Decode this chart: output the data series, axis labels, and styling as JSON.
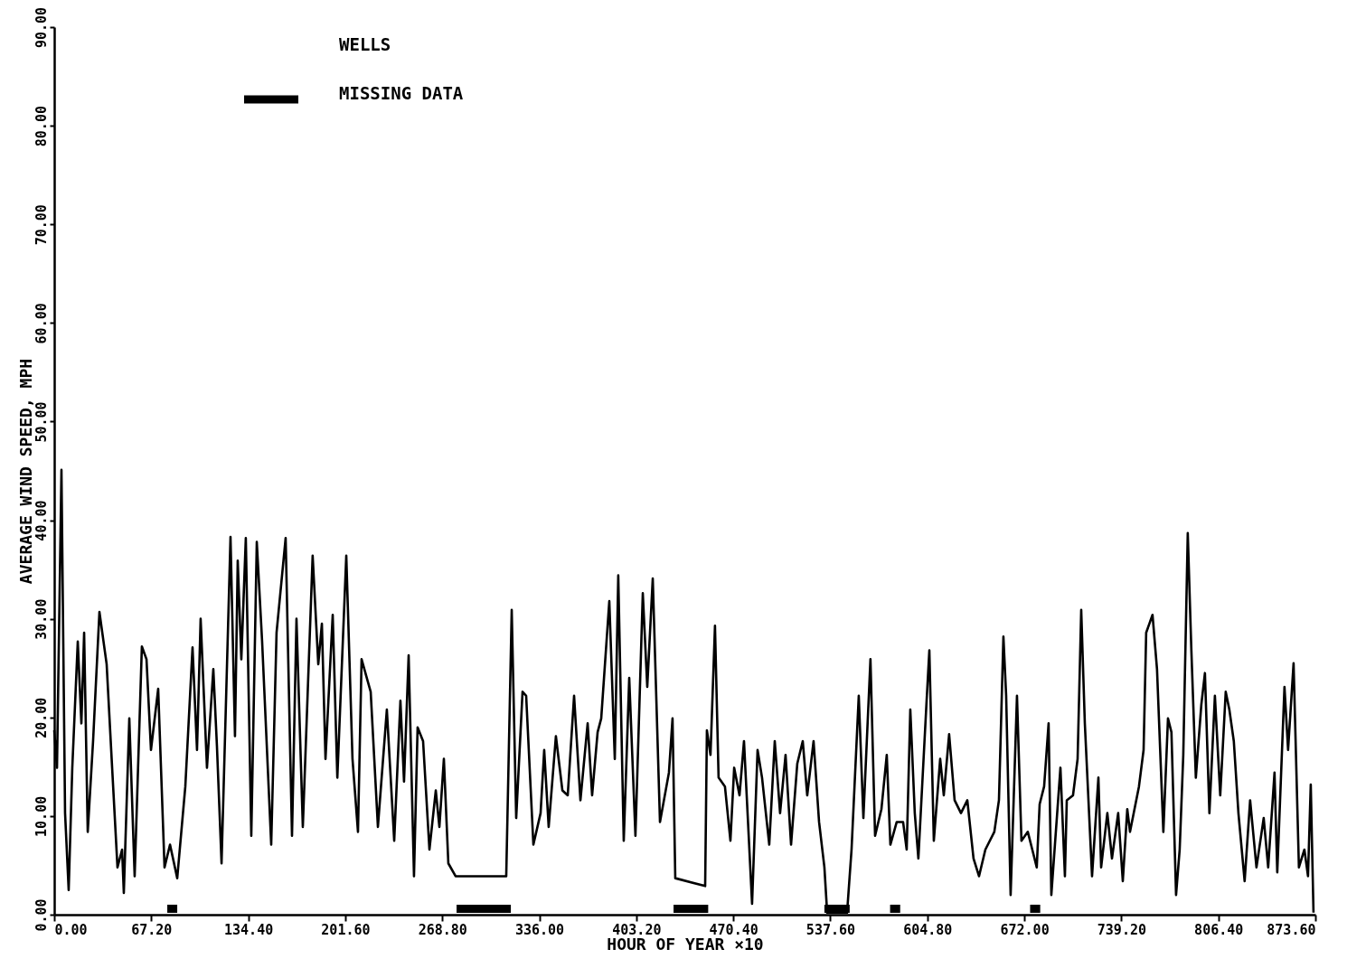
{
  "chart_data": {
    "type": "line",
    "title": "WELLS",
    "xlabel": "HOUR OF YEAR ×10",
    "ylabel": "AVERAGE WIND SPEED, MPH",
    "xlim": [
      0,
      873.6
    ],
    "ylim": [
      0,
      90
    ],
    "xticks": [
      {
        "value": 0,
        "label": "0.00"
      },
      {
        "value": 67.2,
        "label": "67.20"
      },
      {
        "value": 134.4,
        "label": "134.40"
      },
      {
        "value": 201.6,
        "label": "201.60"
      },
      {
        "value": 268.8,
        "label": "268.80"
      },
      {
        "value": 336,
        "label": "336.00"
      },
      {
        "value": 403.2,
        "label": "403.20"
      },
      {
        "value": 470.4,
        "label": "470.40"
      },
      {
        "value": 537.6,
        "label": "537.60"
      },
      {
        "value": 604.8,
        "label": "604.80"
      },
      {
        "value": 672,
        "label": "672.00"
      },
      {
        "value": 739.2,
        "label": "739.20"
      },
      {
        "value": 806.4,
        "label": "806.40"
      },
      {
        "value": 873.6,
        "label": "873.60"
      }
    ],
    "yticks": [
      {
        "value": 0,
        "label": "0.00"
      },
      {
        "value": 10,
        "label": "10.00"
      },
      {
        "value": 20,
        "label": "20.00"
      },
      {
        "value": 30,
        "label": "30.00"
      },
      {
        "value": 40,
        "label": "40.00"
      },
      {
        "value": 50,
        "label": "50.00"
      },
      {
        "value": 60,
        "label": "60.00"
      },
      {
        "value": 70,
        "label": "70.00"
      },
      {
        "value": 80,
        "label": "80.00"
      },
      {
        "value": 90,
        "label": "90.00"
      }
    ],
    "grid": false,
    "legend": "top left",
    "series": [
      {
        "color": "#000000",
        "x": [
          0,
          1.9,
          5.0,
          7.5,
          10.0,
          12.5,
          16.3,
          18.8,
          20.7,
          23.2,
          26.9,
          31.3,
          36.3,
          40.1,
          43.8,
          47.0,
          48.2,
          52.0,
          55.7,
          60.7,
          63.9,
          67.0,
          72.0,
          76.4,
          80.2,
          85.2,
          90.8,
          95.8,
          98.9,
          101.4,
          105.8,
          110.2,
          112.7,
          115.9,
          122.1,
          125.2,
          127.1,
          129.6,
          132.7,
          136.5,
          140.3,
          144.0,
          150.3,
          154.0,
          160.3,
          164.7,
          167.8,
          172.2,
          179.0,
          182.9,
          185.4,
          187.9,
          192.9,
          196.1,
          202.3,
          206.6,
          210.4,
          212.9,
          219.2,
          224.2,
          230.4,
          235.5,
          239.8,
          242.3,
          245.5,
          249.2,
          251.7,
          255.5,
          259.9,
          264.3,
          266.8,
          269.9,
          273.0,
          278.0,
          313.1,
          316.9,
          320.0,
          324.4,
          326.9,
          331.9,
          336.9,
          339.4,
          342.5,
          347.5,
          352.0,
          355.7,
          360.1,
          364.5,
          369.5,
          372.6,
          376.4,
          378.9,
          384.5,
          388.3,
          390.7,
          394.5,
          398.3,
          402.6,
          407.7,
          410.8,
          414.6,
          419.6,
          425.8,
          428.3,
          430.2,
          450.9,
          452.1,
          454.6,
          457.7,
          460.2,
          464.6,
          468.4,
          471.0,
          474.7,
          477.8,
          483.4,
          487.2,
          490.3,
          495.3,
          499.1,
          502.8,
          506.6,
          510.4,
          514.7,
          518.5,
          521.6,
          526.0,
          529.8,
          533.5,
          535.4,
          549.2,
          552.3,
          557.3,
          560.5,
          565.4,
          568.6,
          573.0,
          576.7,
          579.2,
          583.6,
          588.0,
          590.5,
          593.0,
          596.1,
          598.6,
          604.3,
          606.2,
          609.3,
          613.7,
          616.2,
          619.9,
          623.7,
          628.1,
          632.5,
          636.8,
          640.6,
          645.0,
          651.2,
          654.4,
          657.5,
          659.4,
          662.5,
          666.9,
          670.0,
          674.4,
          677.5,
          680.6,
          682.6,
          685.7,
          688.8,
          690.7,
          697.0,
          700.1,
          701.4,
          705.7,
          708.9,
          711.4,
          713.9,
          718.9,
          723.3,
          725.2,
          729.5,
          732.7,
          737.0,
          740.2,
          743.3,
          745.2,
          751.4,
          754.6,
          756.4,
          760.8,
          763.9,
          768.3,
          771.5,
          773.9,
          777.1,
          779.6,
          782.1,
          785.2,
          787.7,
          790.8,
          794.6,
          797.1,
          800.2,
          804.0,
          807.7,
          811.5,
          814.0,
          817.1,
          820.3,
          824.6,
          828.4,
          832.8,
          837.8,
          840.9,
          845.3,
          847.2,
          852.2,
          854.7,
          858.5,
          862.2,
          866.0,
          868.5,
          870.4,
          872.3
        ],
        "values": [
          18.7,
          14.9,
          45.1,
          10.3,
          2.5,
          14.9,
          27.7,
          19.4,
          28.6,
          8.4,
          17.6,
          30.7,
          25.4,
          14.9,
          4.8,
          6.6,
          2.2,
          19.9,
          3.9,
          27.2,
          25.9,
          16.7,
          22.9,
          4.8,
          7.1,
          3.7,
          13.0,
          27.1,
          16.7,
          30.0,
          14.9,
          24.9,
          17.1,
          5.2,
          38.3,
          18.1,
          35.9,
          25.9,
          38.2,
          8.0,
          37.8,
          27.7,
          7.1,
          28.6,
          38.2,
          8.0,
          30.0,
          8.9,
          36.4,
          25.4,
          29.5,
          15.8,
          30.4,
          13.9,
          36.4,
          15.8,
          8.4,
          25.9,
          22.6,
          8.9,
          20.8,
          7.5,
          21.7,
          13.5,
          26.3,
          3.9,
          19.0,
          17.6,
          6.6,
          12.6,
          8.9,
          15.8,
          5.2,
          3.9,
          3.9,
          30.9,
          9.8,
          22.6,
          22.2,
          7.1,
          10.3,
          16.7,
          8.9,
          18.1,
          12.6,
          12.1,
          22.2,
          11.6,
          19.4,
          12.1,
          18.5,
          19.9,
          31.8,
          15.8,
          34.4,
          7.5,
          24.0,
          8.0,
          32.6,
          23.1,
          34.1,
          9.4,
          14.4,
          19.9,
          3.7,
          2.9,
          18.7,
          16.2,
          29.3,
          13.9,
          13.0,
          7.5,
          14.9,
          12.1,
          17.6,
          1.1,
          16.7,
          13.9,
          7.1,
          17.6,
          10.3,
          16.2,
          7.1,
          15.3,
          17.6,
          12.1,
          17.6,
          9.4,
          4.8,
          0.2,
          0.2,
          6.6,
          22.2,
          9.8,
          25.9,
          8.0,
          10.7,
          16.2,
          7.1,
          9.4,
          9.4,
          6.6,
          20.8,
          10.3,
          5.7,
          21.7,
          26.8,
          7.5,
          15.8,
          12.1,
          18.3,
          11.6,
          10.3,
          11.6,
          5.7,
          3.9,
          6.6,
          8.4,
          11.6,
          28.2,
          22.2,
          2.0,
          22.2,
          7.5,
          8.4,
          6.6,
          4.8,
          11.2,
          13.0,
          19.4,
          2.0,
          14.9,
          3.9,
          11.6,
          12.1,
          15.8,
          30.9,
          19.4,
          3.9,
          13.9,
          4.8,
          10.3,
          5.7,
          10.3,
          3.4,
          10.7,
          8.4,
          13.0,
          16.7,
          28.6,
          30.4,
          24.9,
          8.4,
          19.9,
          18.5,
          2.0,
          6.6,
          16.2,
          38.7,
          26.8,
          13.9,
          21.3,
          24.5,
          10.3,
          22.2,
          12.1,
          22.6,
          20.8,
          17.6,
          10.3,
          3.4,
          11.6,
          4.8,
          9.8,
          4.8,
          14.4,
          4.3,
          23.1,
          16.7,
          25.5,
          4.8,
          6.6,
          3.9,
          13.2,
          0.2
        ]
      },
      {
        "name": "MISSING DATA",
        "color": "#000000",
        "x": [
          78.3,
          85.2,
          180,
          278.7,
          316.3,
          370,
          429.0,
          453.0,
          490,
          533.5,
          551.0,
          565,
          579.0,
          586.0,
          630,
          676.0,
          683.0
        ],
        "values": [
          0.6,
          0.6,
          null,
          0.6,
          0.6,
          null,
          0.6,
          0.6,
          null,
          0.6,
          0.6,
          null,
          0.6,
          0.6,
          null,
          0.6,
          0.6
        ]
      }
    ]
  }
}
